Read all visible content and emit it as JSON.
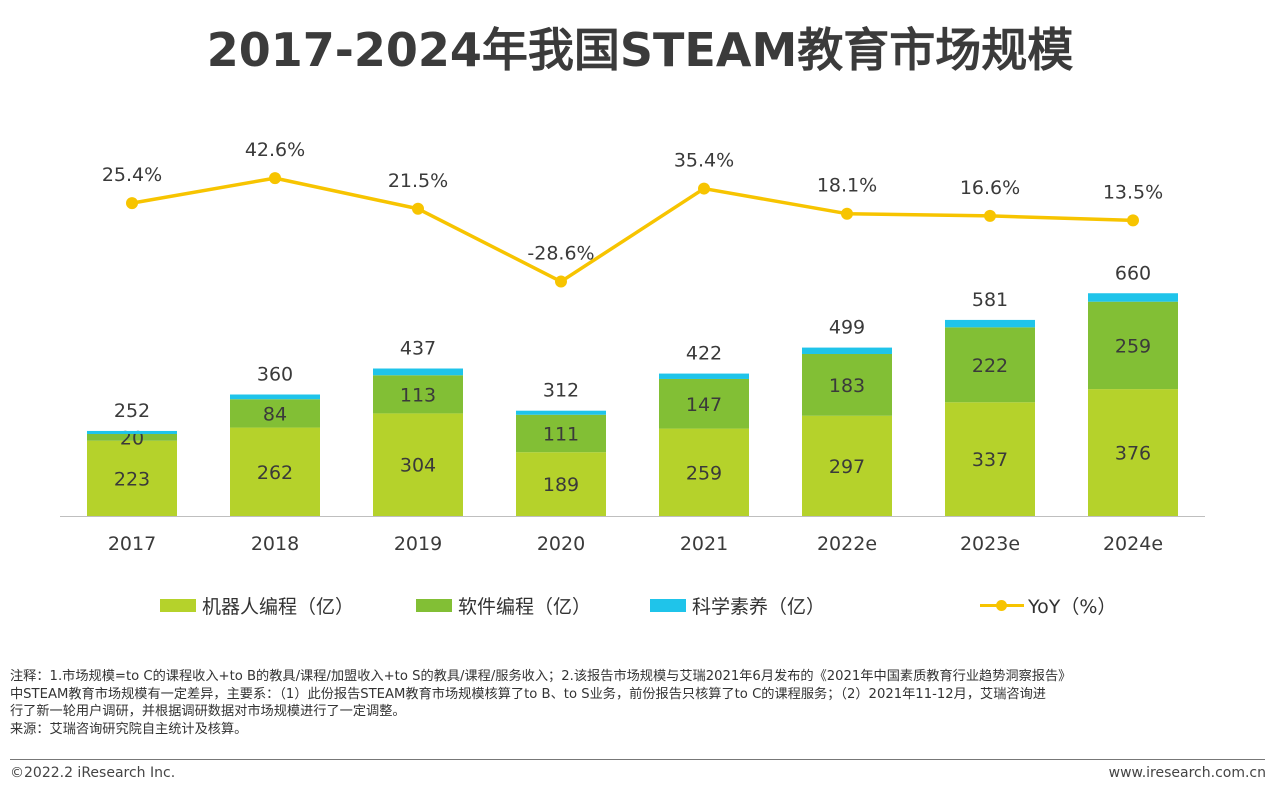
{
  "title": "2017-2024年我国STEAM教育市场规模",
  "colors": {
    "robot": "#b5d22b",
    "software": "#82bf35",
    "science": "#1fc4ea",
    "yoy": "#f7c400",
    "axis": "#bfbfbf",
    "text": "#3a3a3a"
  },
  "chart_data": {
    "type": "bar",
    "stacked": true,
    "categories": [
      "2017",
      "2018",
      "2019",
      "2020",
      "2021",
      "2022e",
      "2023e",
      "2024e"
    ],
    "series": [
      {
        "name": "机器人编程（亿）",
        "values": [
          223,
          262,
          304,
          189,
          259,
          297,
          337,
          376
        ]
      },
      {
        "name": "软件编程（亿）",
        "values": [
          20,
          84,
          113,
          111,
          147,
          183,
          222,
          259
        ]
      },
      {
        "name": "科学素养（亿）",
        "values": [
          9,
          14,
          20,
          12,
          16,
          19,
          22,
          25
        ]
      }
    ],
    "totals": [
      "252",
      "360",
      "437",
      "312",
      "422",
      "499",
      "581",
      "660"
    ],
    "line_series": {
      "name": "YoY（%）",
      "values": [
        25.4,
        42.6,
        21.5,
        -28.6,
        35.4,
        18.1,
        16.6,
        13.5
      ],
      "labels": [
        "25.4%",
        "42.6%",
        "21.5%",
        "-28.6%",
        "35.4%",
        "18.1%",
        "16.6%",
        "13.5%"
      ]
    },
    "legend_position": "bottom"
  },
  "notes": [
    "注释：1.市场规模=to C的课程收入+to B的教具/课程/加盟收入+to S的教具/课程/服务收入；2.该报告市场规模与艾瑞2021年6月发布的《2021年中国素质教育行业趋势洞察报告》",
    "中STEAM教育市场规模有一定差异，主要系：（1）此份报告STEAM教育市场规模核算了to B、to S业务，前份报告只核算了to C的课程服务；（2）2021年11-12月，艾瑞咨询进",
    "行了新一轮用户调研，并根据调研数据对市场规模进行了一定调整。",
    "来源：艾瑞咨询研究院自主统计及核算。"
  ],
  "footer": {
    "copyright": "©2022.2 iResearch Inc.",
    "website": "www.iresearch.com.cn"
  }
}
